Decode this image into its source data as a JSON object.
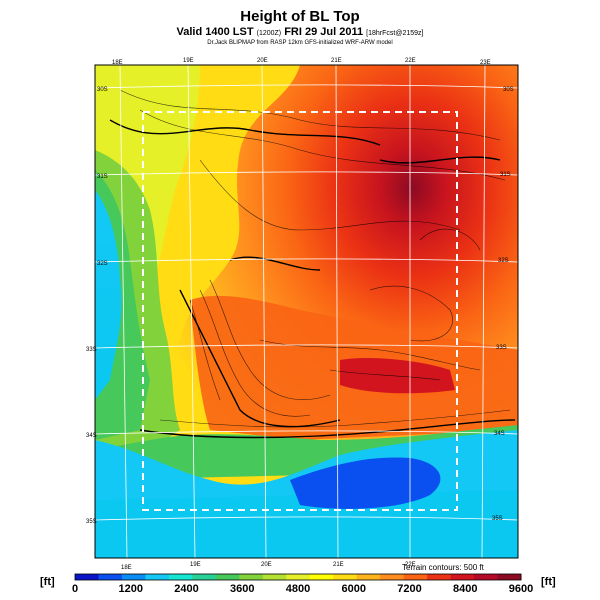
{
  "title": "Height of BL Top",
  "valid_line": {
    "prefix": "Valid 1400 LST",
    "code": "(1200Z)",
    "date": "FRI 29 Jul 2011",
    "fcst": "[18hrFcst@2159z]"
  },
  "source": "Dr.Jack BLIPMAP from RASP 12km GFS-initialized WRF-ARW model",
  "terrain_note": "Terrain contours: 500 ft",
  "unit": "[ft]",
  "lon_labels_top": [
    "18E",
    "19E",
    "20E",
    "21E",
    "22E",
    "23E"
  ],
  "lon_labels_bottom": [
    "18E",
    "19E",
    "20E",
    "21E",
    "22E"
  ],
  "lat_labels_left": [
    "30S",
    "31S",
    "32S",
    "33S",
    "34S",
    "35S"
  ],
  "lat_labels_right": [
    "30S",
    "31S",
    "32S",
    "33S",
    "34S",
    "35S"
  ],
  "colorbar": {
    "colors": [
      "#0a14c8",
      "#0a50f0",
      "#0a8cf5",
      "#14c8f5",
      "#14e6d2",
      "#28d296",
      "#46c85a",
      "#82d23c",
      "#b4e132",
      "#e6f028",
      "#ffff00",
      "#ffdc14",
      "#ffb41e",
      "#ff8c1e",
      "#fa6414",
      "#eb3214",
      "#d2141e",
      "#b40a28",
      "#8c0a23"
    ],
    "labels": [
      "0",
      "1200",
      "2400",
      "3600",
      "4800",
      "6000",
      "7200",
      "8400",
      "9600"
    ],
    "range": [
      0,
      9600
    ]
  },
  "map_values": {
    "description_keys": [
      "ocean",
      "coast",
      "interior"
    ],
    "ocean_ft": 1000,
    "coast_ft": 3000,
    "interior_ft": 7800
  }
}
